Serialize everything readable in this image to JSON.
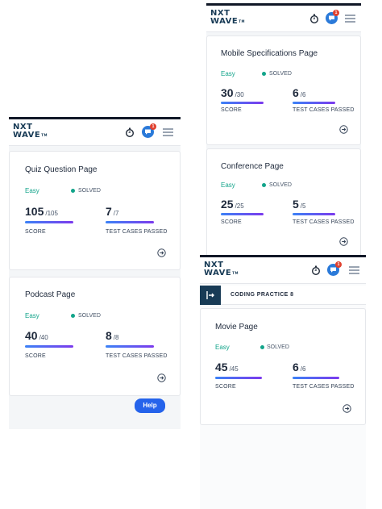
{
  "brand": {
    "logo_line1": "NXT",
    "logo_line2": "WAVE",
    "logo_tm": "TM",
    "notification_count": "1"
  },
  "labels": {
    "solved": "SOLVED",
    "score": "SCORE",
    "test_cases": "TEST CASES PASSED",
    "difficulty": "Easy"
  },
  "help_label": "Help",
  "coding_practice_title": "CODING PRACTICE 8",
  "cards": [
    {
      "title": "Quiz Question Page",
      "score": "105",
      "score_max": "/105",
      "tests": "7",
      "tests_max": "/7"
    },
    {
      "title": "Podcast Page",
      "score": "40",
      "score_max": "/40",
      "tests": "8",
      "tests_max": "/8"
    },
    {
      "title": "Mobile Specifications Page",
      "score": "30",
      "score_max": "/30",
      "tests": "6",
      "tests_max": "/6"
    },
    {
      "title": "Conference Page",
      "score": "25",
      "score_max": "/25",
      "tests": "5",
      "tests_max": "/5"
    },
    {
      "title": "Movie Page",
      "score": "45",
      "score_max": "/45",
      "tests": "6",
      "tests_max": "/6"
    }
  ],
  "colors": {
    "accent": "#2563eb",
    "easy": "#12a48a",
    "brand_dark": "#183b56",
    "badge": "#e0412f"
  },
  "icons": [
    "timer-icon",
    "chat-icon",
    "hamburger-menu-icon",
    "arrow-right-circle-icon",
    "solved-dot-icon",
    "collapse-sidebar-icon"
  ]
}
